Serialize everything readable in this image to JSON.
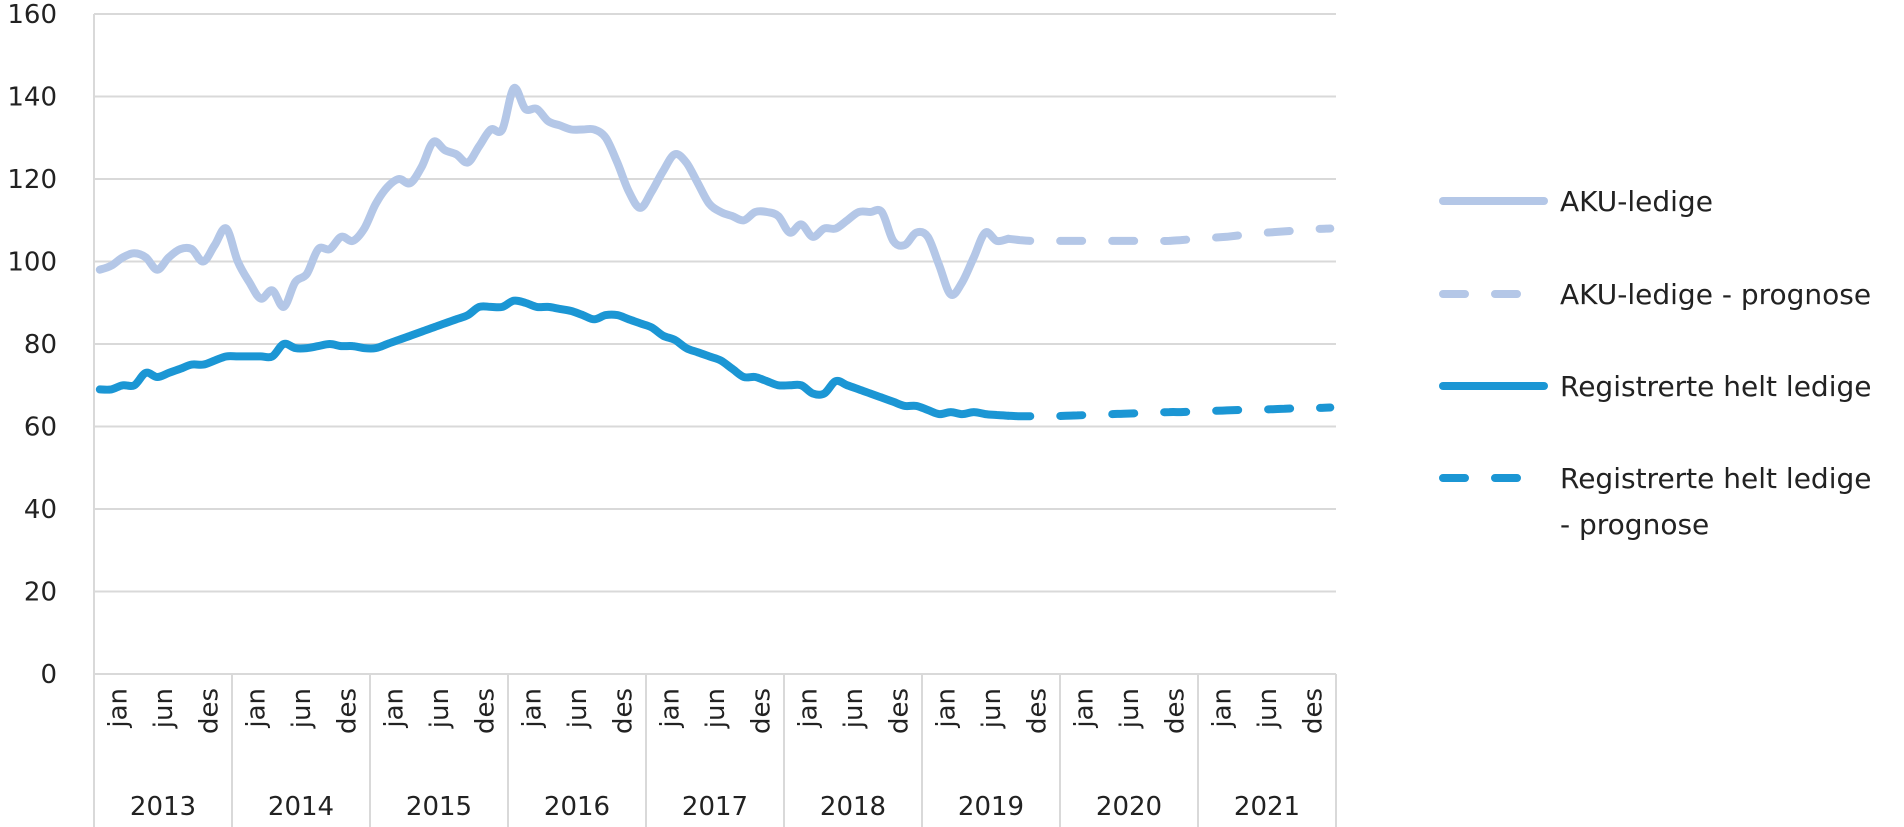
{
  "chart_data": {
    "type": "line",
    "title": "",
    "xlabel": "",
    "ylabel": "",
    "ylim": [
      0,
      160
    ],
    "yticks": [
      "0",
      "20",
      "40",
      "60",
      "80",
      "100",
      "120",
      "140",
      "160"
    ],
    "grid": true,
    "legend_position": "right",
    "x_range": [
      "2013-01",
      "2021-12"
    ],
    "years": [
      "2013",
      "2014",
      "2015",
      "2016",
      "2017",
      "2018",
      "2019",
      "2020",
      "2021"
    ],
    "month_tick_labels": [
      {
        "month": 1,
        "label": "jan"
      },
      {
        "month": 6,
        "label": "jun"
      },
      {
        "month": 12,
        "label": "des"
      }
    ],
    "series": [
      {
        "name": "AKU-ledige",
        "color": "#b4c7e7",
        "style": "solid",
        "start_month": "2013-01",
        "values": [
          98,
          99,
          101,
          102,
          101,
          98,
          101,
          103,
          103,
          100,
          104,
          108,
          100,
          95,
          91,
          93,
          89,
          95,
          97,
          103,
          103,
          106,
          105,
          108,
          114,
          118,
          120,
          119,
          123,
          129,
          127,
          126,
          124,
          128,
          132,
          132,
          142,
          137,
          137,
          134,
          133,
          132,
          132,
          132,
          130,
          124,
          117,
          113,
          117,
          122,
          126,
          124,
          119,
          114,
          112,
          111,
          110,
          112,
          112,
          111,
          107,
          109,
          106,
          108,
          108,
          110,
          112,
          112,
          112,
          105,
          104,
          107,
          106,
          99,
          92,
          95,
          101,
          107,
          105,
          105.5
        ]
      },
      {
        "name": "AKU-ledige - prognose",
        "color": "#b4c7e7",
        "style": "dashed",
        "start_month": "2019-08",
        "values": [
          105.5,
          105.2,
          105,
          105,
          105,
          105,
          105,
          105,
          105,
          105,
          105,
          105,
          105,
          105,
          105,
          105.2,
          105.4,
          105.6,
          105.8,
          106,
          106.3,
          106.6,
          106.9,
          107.1,
          107.3,
          107.5,
          107.7,
          107.9,
          108
        ]
      },
      {
        "name": "Registrerte helt ledige",
        "color": "#1b96d4",
        "style": "solid",
        "start_month": "2013-01",
        "values": [
          69,
          69,
          70,
          70,
          73,
          72,
          73,
          74,
          75,
          75,
          76,
          77,
          77,
          77,
          77,
          77,
          80,
          79,
          79,
          79.5,
          80,
          79.5,
          79.5,
          79,
          79,
          80,
          81,
          82,
          83,
          84,
          85,
          86,
          87,
          89,
          89,
          89,
          90.5,
          90,
          89,
          89,
          88.5,
          88,
          87,
          86,
          87,
          87,
          86,
          85,
          84,
          82,
          81,
          79,
          78,
          77,
          76,
          74,
          72,
          72,
          71,
          70,
          70,
          70,
          68,
          68,
          71,
          70,
          69,
          68,
          67,
          66,
          65,
          65,
          64,
          63,
          63.5,
          63,
          63.5,
          63,
          62.8,
          62.6
        ]
      },
      {
        "name": "Registrerte helt ledige - prognose",
        "color": "#1b96d4",
        "style": "dashed",
        "start_month": "2019-08",
        "values": [
          62.6,
          62.5,
          62.5,
          62.5,
          62.5,
          62.6,
          62.7,
          62.8,
          62.9,
          63,
          63.1,
          63.2,
          63.3,
          63.4,
          63.5,
          63.5,
          63.6,
          63.7,
          63.8,
          63.9,
          64,
          64,
          64.1,
          64.2,
          64.3,
          64.4,
          64.5,
          64.5,
          64.6
        ]
      }
    ],
    "legend": [
      {
        "label_lines": [
          "AKU-ledige"
        ]
      },
      {
        "label_lines": [
          "AKU-ledige - prognose"
        ]
      },
      {
        "label_lines": [
          "Registrerte helt ledige"
        ]
      },
      {
        "label_lines": [
          "Registrerte helt ledige",
          "- prognose"
        ]
      }
    ]
  }
}
